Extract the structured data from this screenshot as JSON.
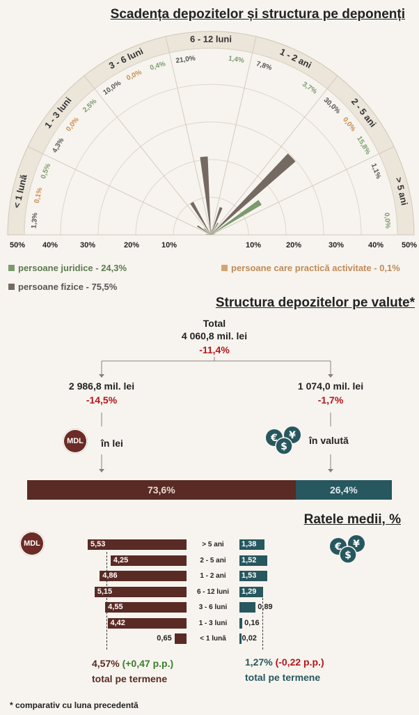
{
  "chart_data": [
    {
      "type": "polar-bar",
      "title": "Scadența depozitelor și structura pe deponenți",
      "categories": [
        "< 1 lună",
        "1 - 3 luni",
        "3 - 6 luni",
        "6 - 12 luni",
        "1 - 2 ani",
        "2 - 5 ani",
        "> 5 ani"
      ],
      "series": [
        {
          "name": "persoane juridice - 24,3%",
          "color": "#7c9a6e",
          "values": [
            0.5,
            2.5,
            0.4,
            1.4,
            3.7,
            15.8,
            0.0
          ],
          "labels": [
            "0,5%",
            "2,5%",
            "0,4%",
            "1,4%",
            "3,7%",
            "15,8%",
            "0,0%"
          ]
        },
        {
          "name": "persoane care practică activitate - 0,1%",
          "color": "#d4a373",
          "values": [
            0.1,
            0.0,
            0.0,
            0.0,
            0.0,
            0.0,
            0.0
          ],
          "labels": [
            "0,1%",
            "0,0%",
            "0,0%",
            "",
            "",
            "0,0%",
            ""
          ]
        },
        {
          "name": "persoane fizice - 75,5%",
          "color": "#756a62",
          "values": [
            1.3,
            4.3,
            10.0,
            21.0,
            7.8,
            30.0,
            1.1
          ],
          "labels": [
            "1,3%",
            "4,3%",
            "10,0%",
            "21,0%",
            "7,8%",
            "30,0%",
            "1,1%"
          ]
        }
      ],
      "axis_ticks": [
        "50%",
        "40%",
        "30%",
        "20%",
        "10%",
        "10%",
        "20%",
        "30%",
        "40%",
        "50%"
      ],
      "rmax": 50
    },
    {
      "type": "stacked-bar",
      "title": "Structura depozitelor pe valute*",
      "total": {
        "label": "Total",
        "value": "4 060,8 mil. lei",
        "change": "-11,4%"
      },
      "lei": {
        "value": "2 986,8 mil. lei",
        "change": "-14,5%",
        "label": "în lei",
        "share": 73.6,
        "share_label": "73,6%"
      },
      "valuta": {
        "value": "1 074,0 mil. lei",
        "change": "-1,7%",
        "label": "în valută",
        "share": 26.4,
        "share_label": "26,4%"
      }
    },
    {
      "type": "bar",
      "title": "Ratele medii, %",
      "categories": [
        "> 5 ani",
        "2 - 5 ani",
        "1 - 2 ani",
        "6 - 12 luni",
        "3 - 6 luni",
        "1 - 3 luni",
        "< 1 lună"
      ],
      "series": [
        {
          "name": "MDL",
          "values": [
            5.53,
            4.25,
            4.86,
            5.15,
            4.55,
            4.42,
            0.65
          ],
          "labels": [
            "5,53",
            "4,25",
            "4,86",
            "5,15",
            "4,55",
            "4,42",
            "0,65"
          ]
        },
        {
          "name": "valută",
          "values": [
            1.38,
            1.52,
            1.53,
            1.29,
            0.89,
            0.16,
            0.02
          ],
          "labels": [
            "1,38",
            "1,52",
            "1,53",
            "1,29",
            "0,89",
            "0,16",
            "0,02"
          ]
        }
      ],
      "total_lei": {
        "value": "4,57%",
        "change": "(+0,47 p.p.)",
        "label": "total pe termene"
      },
      "total_valuta": {
        "value": "1,27%",
        "change": "(-0,22 p.p.)",
        "label": "total pe termene"
      }
    }
  ],
  "icons": {
    "mdl_text": "MDL",
    "mdl_color": "#6b2b26",
    "fx_color": "#27575f"
  },
  "footnote": "* comparativ cu luna precedentă"
}
